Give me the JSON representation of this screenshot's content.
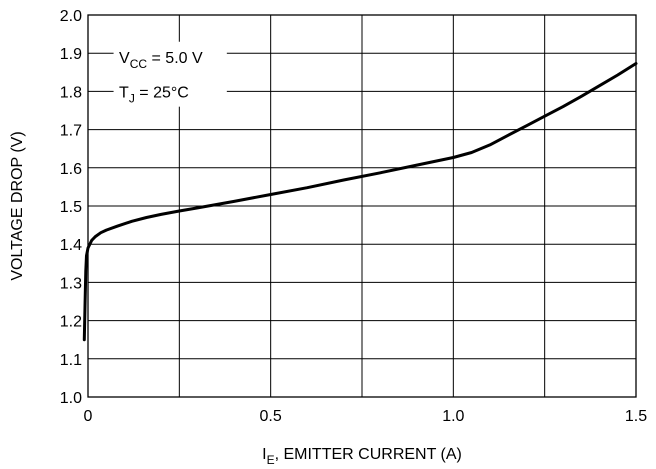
{
  "chart_data": {
    "type": "line",
    "xlabel_main": "I",
    "xlabel_sub": "E",
    "xlabel_rest": ", EMITTER CURRENT (A)",
    "ylabel": "VOLTAGE DROP (V)",
    "xlim": [
      0,
      1.5
    ],
    "ylim": [
      1.0,
      2.0
    ],
    "grid": true,
    "x_ticks": [
      0,
      0.5,
      1.0,
      1.5
    ],
    "x_tick_labels": [
      "0",
      "0.5",
      "1.0",
      "1.5"
    ],
    "x_grid": [
      0,
      0.25,
      0.5,
      0.75,
      1.0,
      1.25,
      1.5
    ],
    "y_ticks": [
      1.0,
      1.1,
      1.2,
      1.3,
      1.4,
      1.5,
      1.6,
      1.7,
      1.8,
      1.9,
      2.0
    ],
    "y_tick_labels": [
      "1.0",
      "1.1",
      "1.2",
      "1.3",
      "1.4",
      "1.5",
      "1.6",
      "1.7",
      "1.8",
      "1.9",
      "2.0"
    ],
    "annotations": [
      {
        "main": "V",
        "sub": "CC",
        "rest": " = 5.0 V"
      },
      {
        "main": "T",
        "sub": "J",
        "rest": " = 25°C"
      }
    ],
    "series": [
      {
        "color": "#000000",
        "x": [
          -0.01,
          -0.008,
          -0.006,
          -0.004,
          0.0,
          0.01,
          0.02,
          0.035,
          0.05,
          0.08,
          0.12,
          0.16,
          0.2,
          0.25,
          0.3,
          0.4,
          0.5,
          0.6,
          0.7,
          0.8,
          0.9,
          1.0,
          1.05,
          1.1,
          1.15,
          1.2,
          1.25,
          1.3,
          1.35,
          1.4,
          1.45,
          1.5
        ],
        "y": [
          1.15,
          1.25,
          1.33,
          1.37,
          1.39,
          1.41,
          1.42,
          1.43,
          1.437,
          1.447,
          1.46,
          1.47,
          1.478,
          1.487,
          1.495,
          1.512,
          1.53,
          1.548,
          1.568,
          1.587,
          1.607,
          1.627,
          1.64,
          1.66,
          1.685,
          1.71,
          1.735,
          1.76,
          1.787,
          1.815,
          1.843,
          1.873
        ]
      }
    ]
  }
}
